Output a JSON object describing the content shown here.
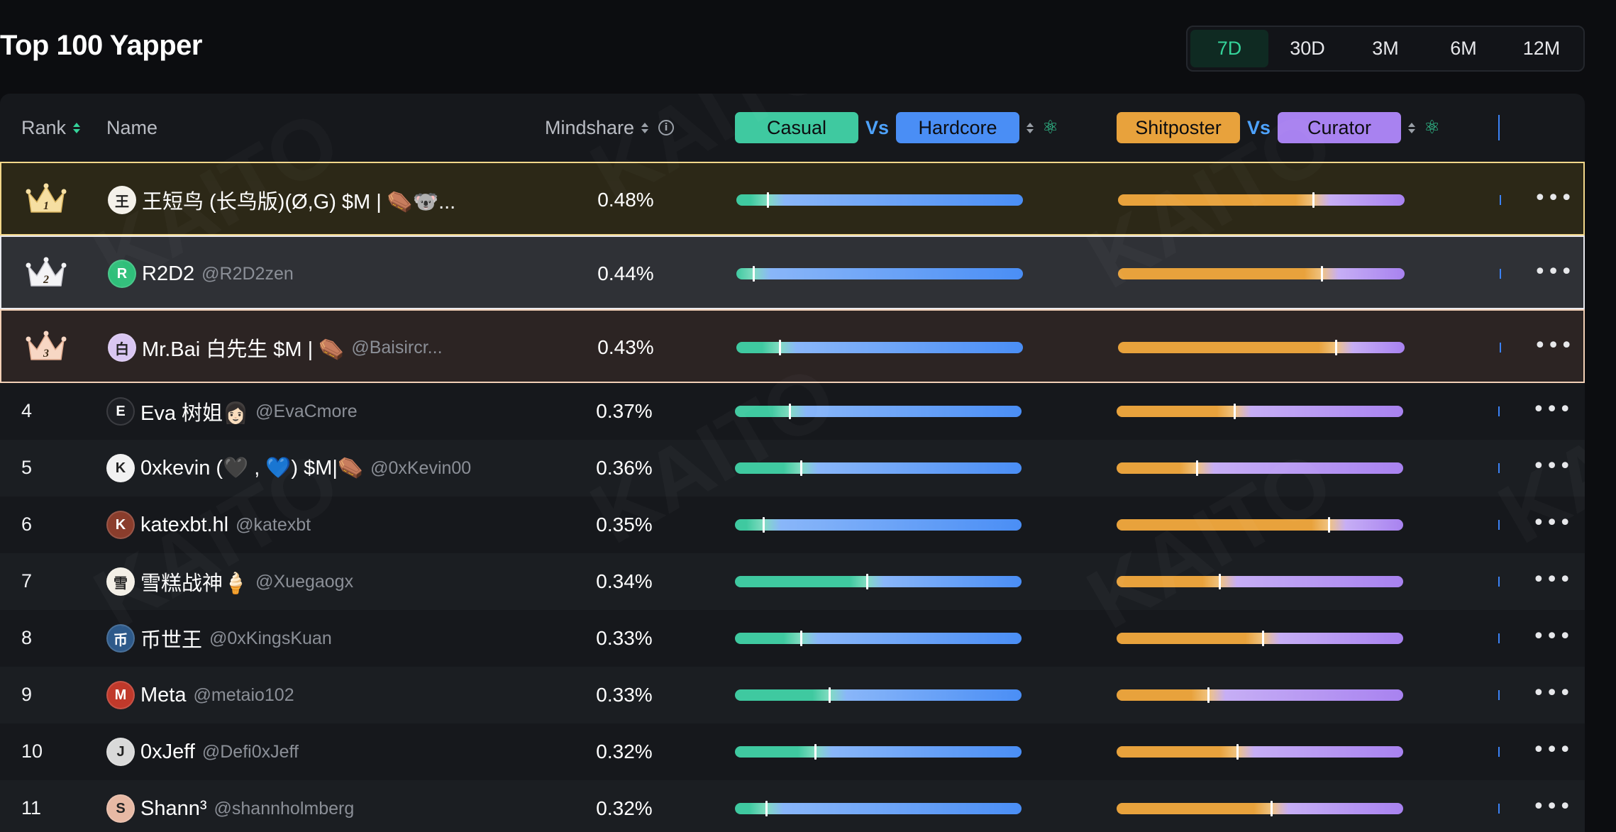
{
  "page": {
    "title": "Top 100 Yapper",
    "watermark": "KAITO"
  },
  "periods": [
    "7D",
    "30D",
    "3M",
    "6M",
    "12M"
  ],
  "active_period": "7D",
  "columns": {
    "rank": "Rank",
    "name": "Name",
    "mindshare": "Mindshare",
    "info_icon": "i",
    "casual": "Casual",
    "vs": "Vs",
    "hardcore": "Hardcore",
    "shitposter": "Shitposter",
    "curator": "Curator"
  },
  "colors": {
    "casual": "#3fc9a0",
    "hardcore": "#4a8ef5",
    "shitposter": "#e8a23c",
    "curator": "#a882f0",
    "accent": "#35d39a",
    "gold_row_bg": "#2c2817",
    "gold_row_border": "#f2d78a",
    "silver_row_bg": "#2f3136",
    "silver_row_border": "#e9e9ee",
    "bronze_row_bg": "#2c2423",
    "bronze_row_border": "#f2d0b6"
  },
  "rows": [
    {
      "rank": "1",
      "name": "王短鸟 (长鸟版)(Ø,G) $M | ⚰️🐨...",
      "handle": "",
      "mindshare": "0.48%",
      "casual_hardcore": 0.11,
      "shit_curator": 0.68,
      "avatar_bg": "#f4f1ea",
      "avatar_text": "王"
    },
    {
      "rank": "2",
      "name": "R2D2",
      "handle": "@R2D2zen",
      "mindshare": "0.44%",
      "casual_hardcore": 0.06,
      "shit_curator": 0.71,
      "avatar_bg": "#2fbf7a",
      "avatar_text": "R"
    },
    {
      "rank": "3",
      "name": "Mr.Bai 白先生 $M | ⚰️",
      "handle": "@Baisircr...",
      "mindshare": "0.43%",
      "casual_hardcore": 0.15,
      "shit_curator": 0.76,
      "avatar_bg": "#d9c6f2",
      "avatar_text": "白"
    },
    {
      "rank": "4",
      "name": "Eva 树姐👩🏻",
      "handle": "@EvaCmore",
      "mindshare": "0.37%",
      "casual_hardcore": 0.19,
      "shit_curator": 0.41,
      "avatar_bg": "#1d1f24",
      "avatar_text": "E"
    },
    {
      "rank": "5",
      "name": "0xkevin (🖤 , 💙) $M|⚰️",
      "handle": "@0xKevin00",
      "mindshare": "0.36%",
      "casual_hardcore": 0.23,
      "shit_curator": 0.28,
      "avatar_bg": "#f1f1f1",
      "avatar_text": "K"
    },
    {
      "rank": "6",
      "name": "katexbt.hl",
      "handle": "@katexbt",
      "mindshare": "0.35%",
      "casual_hardcore": 0.1,
      "shit_curator": 0.74,
      "avatar_bg": "#8a3d2c",
      "avatar_text": "K"
    },
    {
      "rank": "7",
      "name": "雪糕战神🍦",
      "handle": "@Xuegaogx",
      "mindshare": "0.34%",
      "casual_hardcore": 0.46,
      "shit_curator": 0.36,
      "avatar_bg": "#f3efe6",
      "avatar_text": "雪"
    },
    {
      "rank": "8",
      "name": "币世王",
      "handle": "@0xKingsKuan",
      "mindshare": "0.33%",
      "casual_hardcore": 0.23,
      "shit_curator": 0.51,
      "avatar_bg": "#2e5a8a",
      "avatar_text": "币"
    },
    {
      "rank": "9",
      "name": "Meta",
      "handle": "@metaio102",
      "mindshare": "0.33%",
      "casual_hardcore": 0.33,
      "shit_curator": 0.32,
      "avatar_bg": "#c0392b",
      "avatar_text": "M"
    },
    {
      "rank": "10",
      "name": "0xJeff",
      "handle": "@Defi0xJeff",
      "mindshare": "0.32%",
      "casual_hardcore": 0.28,
      "shit_curator": 0.42,
      "avatar_bg": "#d9d9d9",
      "avatar_text": "J"
    },
    {
      "rank": "11",
      "name": "Shann³",
      "handle": "@shannholmberg",
      "mindshare": "0.32%",
      "casual_hardcore": 0.11,
      "shit_curator": 0.54,
      "avatar_bg": "#e7b9a4",
      "avatar_text": "S"
    }
  ]
}
